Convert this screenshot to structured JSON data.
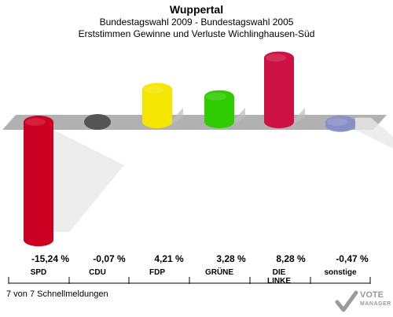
{
  "header": {
    "title": "Wuppertal",
    "subtitle1": "Bundestagswahl 2009 - Bundestagswahl 2005",
    "subtitle2": "Erststimmen Gewinne und Verluste Wichlinghausen-Süd"
  },
  "footer": {
    "note": "7 von 7 Schnellmeldungen",
    "logo_line1": "VOTE",
    "logo_line2": "MANAGER"
  },
  "chart_data": {
    "type": "bar",
    "categories": [
      "SPD",
      "CDU",
      "FDP",
      "GRÜNE",
      "DIE LINKE",
      "sonstige"
    ],
    "values": [
      -15.24,
      -0.07,
      4.21,
      3.28,
      8.28,
      -0.47
    ],
    "value_labels": [
      "-15,24 %",
      "-0,07 %",
      "4,21 %",
      "3,28 %",
      "8,28 %",
      "-0,47 %"
    ],
    "colors": [
      "#cc0022",
      "#555555",
      "#f5e600",
      "#2ecc00",
      "#cc1144",
      "#8890c8"
    ]
  }
}
